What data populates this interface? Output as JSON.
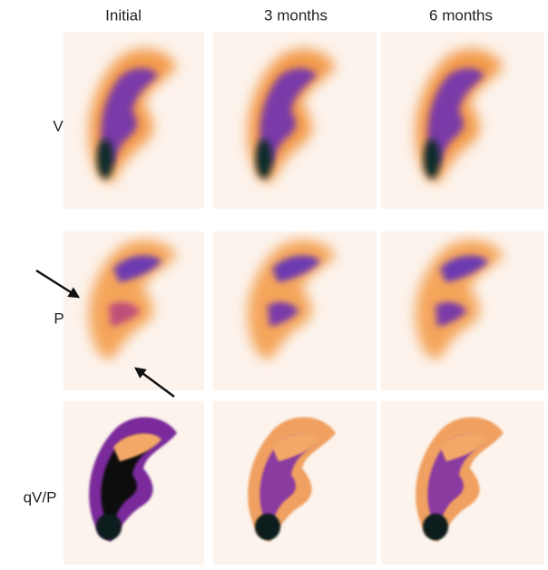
{
  "columns": [
    "Initial",
    "3 months",
    "6 months"
  ],
  "rows": [
    "V",
    "P",
    "qV/P"
  ]
}
